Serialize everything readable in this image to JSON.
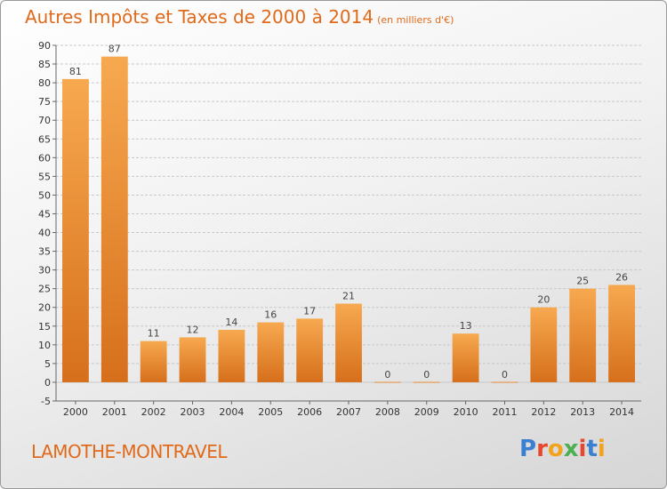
{
  "header": {
    "title": "Autres Impôts et Taxes de 2000 à 2014",
    "subtitle": "(en milliers d'€)"
  },
  "footer": {
    "commune": "LAMOTHE-MONTRAVEL",
    "logo_text": "Proxiti"
  },
  "colors": {
    "accent": "#e06a1a",
    "bar_light": "#f7a94f",
    "bar_dark": "#d66f1c",
    "grid": "#c8c8c8",
    "logo": [
      "#3a7fd0",
      "#e8462e",
      "#f2a31b",
      "#4caf50",
      "#e8462e",
      "#3a7fd0",
      "#f2a31b"
    ]
  },
  "chart_data": {
    "type": "bar",
    "title": "Autres Impôts et Taxes de 2000 à 2014",
    "subtitle": "(en milliers d'€)",
    "categories": [
      "2000",
      "2001",
      "2002",
      "2003",
      "2004",
      "2005",
      "2006",
      "2007",
      "2008",
      "2009",
      "2010",
      "2011",
      "2012",
      "2013",
      "2014"
    ],
    "values": [
      81,
      87,
      11,
      12,
      14,
      16,
      17,
      21,
      0,
      0,
      13,
      0,
      20,
      25,
      26
    ],
    "ylim": [
      -5,
      90
    ],
    "yticks": [
      -5,
      0,
      5,
      10,
      15,
      20,
      25,
      30,
      35,
      40,
      45,
      50,
      55,
      60,
      65,
      70,
      75,
      80,
      85,
      90
    ],
    "grid": true,
    "legend": "none"
  }
}
